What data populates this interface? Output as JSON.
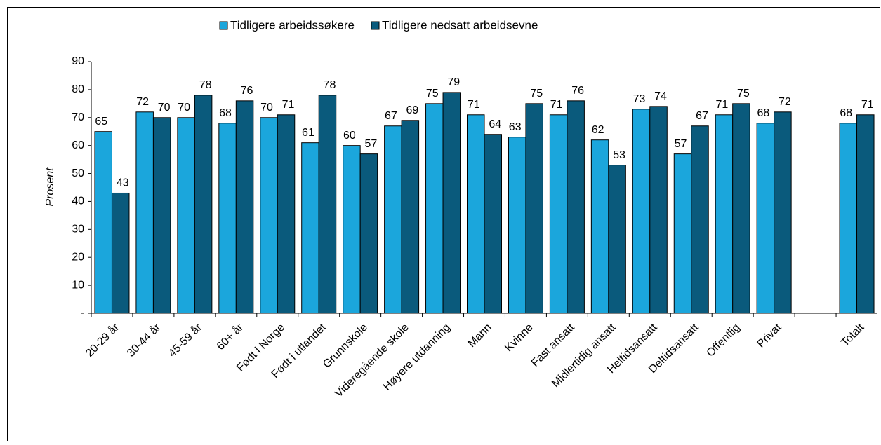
{
  "chart_data": {
    "type": "bar",
    "y_label": "Prosent",
    "categories": [
      "20-29 år",
      "30-44 år",
      "45-59 år",
      "60+ år",
      "Født i Norge",
      "Født i utlandet",
      "Grunnskole",
      "Videregående skole",
      "Høyere utdanning",
      "Mann",
      "Kvinne",
      "Fast ansatt",
      "Midlertidig ansatt",
      "Heltidsansatt",
      "Deltidsansatt",
      "Offentlig",
      "Privat",
      null,
      "Totalt"
    ],
    "series": [
      {
        "name": "Tidligere arbeidssøkere",
        "color": "#1ba6dc",
        "values": [
          65,
          72,
          70,
          68,
          70,
          61,
          60,
          67,
          75,
          71,
          63,
          71,
          62,
          73,
          57,
          71,
          68,
          null,
          68
        ]
      },
      {
        "name": "Tidligere nedsatt arbeidsevne",
        "color": "#0a5a7c",
        "values": [
          43,
          70,
          78,
          76,
          71,
          78,
          57,
          69,
          79,
          64,
          75,
          76,
          53,
          74,
          67,
          75,
          72,
          null,
          71
        ]
      }
    ],
    "ylim": [
      0,
      90
    ],
    "yticks": [
      {
        "value": 0,
        "label": "-"
      },
      10,
      20,
      30,
      40,
      50,
      60,
      70,
      80,
      90
    ],
    "legend": "top"
  }
}
